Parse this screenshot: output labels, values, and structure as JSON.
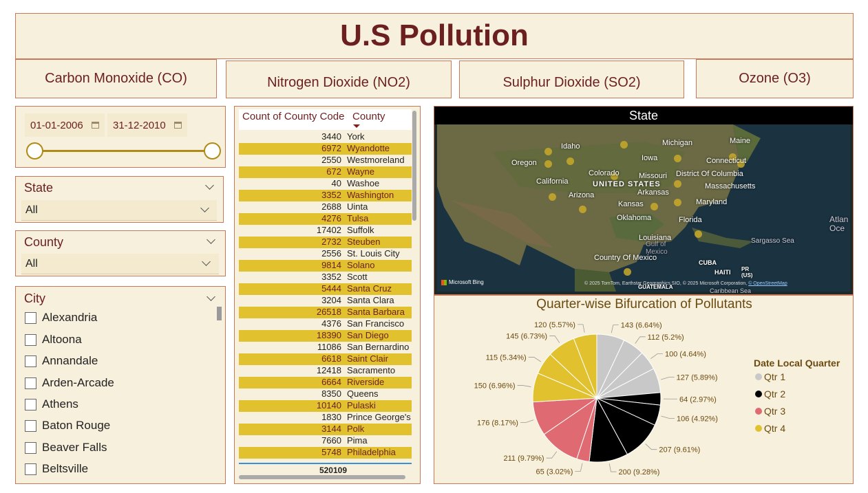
{
  "title": "U.S Pollution",
  "tabs": [
    "Carbon Monoxide (CO)",
    "Nitrogen Dioxide (NO2)",
    "Sulphur Dioxide (SO2)",
    "Ozone (O3)"
  ],
  "date_range": {
    "start": "01-01-2006",
    "end": "31-12-2010"
  },
  "state_slicer": {
    "title": "State",
    "value": "All"
  },
  "county_slicer": {
    "title": "County",
    "value": "All"
  },
  "city_slicer": {
    "title": "City",
    "items": [
      "Alexandria",
      "Altoona",
      "Annandale",
      "Arden-Arcade",
      "Athens",
      "Baton Rouge",
      "Beaver Falls",
      "Beltsville"
    ]
  },
  "table": {
    "col_count": "Count of County Code",
    "col_county": "County",
    "rows": [
      {
        "count": "3440",
        "county": "York"
      },
      {
        "count": "6972",
        "county": "Wyandotte"
      },
      {
        "count": "2550",
        "county": "Westmoreland"
      },
      {
        "count": "672",
        "county": "Wayne"
      },
      {
        "count": "40",
        "county": "Washoe"
      },
      {
        "count": "3352",
        "county": "Washington"
      },
      {
        "count": "2688",
        "county": "Uinta"
      },
      {
        "count": "4276",
        "county": "Tulsa"
      },
      {
        "count": "17402",
        "county": "Suffolk"
      },
      {
        "count": "2732",
        "county": "Steuben"
      },
      {
        "count": "2556",
        "county": "St. Louis City"
      },
      {
        "count": "9814",
        "county": "Solano"
      },
      {
        "count": "3352",
        "county": "Scott"
      },
      {
        "count": "5444",
        "county": "Santa Cruz"
      },
      {
        "count": "3204",
        "county": "Santa Clara"
      },
      {
        "count": "26518",
        "county": "Santa Barbara"
      },
      {
        "count": "4376",
        "county": "San Francisco"
      },
      {
        "count": "18390",
        "county": "San Diego"
      },
      {
        "count": "11086",
        "county": "San Bernardino"
      },
      {
        "count": "6618",
        "county": "Saint Clair"
      },
      {
        "count": "12418",
        "county": "Sacramento"
      },
      {
        "count": "6664",
        "county": "Riverside"
      },
      {
        "count": "8350",
        "county": "Queens"
      },
      {
        "count": "10140",
        "county": "Pulaski"
      },
      {
        "count": "1830",
        "county": "Prince George's"
      },
      {
        "count": "3144",
        "county": "Polk"
      },
      {
        "count": "7660",
        "county": "Pima"
      },
      {
        "count": "5748",
        "county": "Philadelphia"
      }
    ],
    "total": "520109"
  },
  "map": {
    "title": "State",
    "labels": [
      "Idaho",
      "Michigan",
      "Maine",
      "Oregon",
      "Iowa",
      "Connecticut",
      "Colorado",
      "Missouri",
      "District Of Columbia",
      "California",
      "UNITED STATES",
      "Massachusetts",
      "Arkansas",
      "Arizona",
      "Kansas",
      "Maryland",
      "Oklahoma",
      "Florida",
      "Louisiana",
      "Gulf of Mexico",
      "Sargasso Sea",
      "Country Of Mexico",
      "CUBA",
      "HAITI",
      "PR (US)",
      "Atlan Oce",
      "GUATEMALA",
      "Caribbean Sea"
    ],
    "brand": "Microsoft Bing",
    "attribution": "© 2025 TomTom, Earthstar Geographics SIO, © 2025 Microsoft Corporation, ",
    "attribution_link": "© OpenStreetMap"
  },
  "chart_data": {
    "type": "pie",
    "title": "Quarter-wise Bifurcation of Pollutants",
    "legend_title": "Date Local Quarter",
    "legend_position": "right",
    "categories": [
      "Qtr 1",
      "Qtr 2",
      "Qtr 3",
      "Qtr 4"
    ],
    "colors": [
      "#c8c8c8",
      "#000000",
      "#e06a72",
      "#e2c12e"
    ],
    "slices": [
      {
        "quarter": "Qtr 1",
        "value": 143,
        "label": "143 (6.64%)"
      },
      {
        "quarter": "Qtr 1",
        "value": 112,
        "label": "112 (5.2%)"
      },
      {
        "quarter": "Qtr 1",
        "value": 100,
        "label": "100 (4.64%)"
      },
      {
        "quarter": "Qtr 1",
        "value": 127,
        "label": "127 (5.89%)"
      },
      {
        "quarter": "Qtr 2",
        "value": 64,
        "label": "64 (2.97%)"
      },
      {
        "quarter": "Qtr 2",
        "value": 106,
        "label": "106 (4.92%)"
      },
      {
        "quarter": "Qtr 2",
        "value": 207,
        "label": "207 (9.61%)"
      },
      {
        "quarter": "Qtr 2",
        "value": 200,
        "label": "200 (9.28%)"
      },
      {
        "quarter": "Qtr 3",
        "value": 65,
        "label": "65 (3.02%)"
      },
      {
        "quarter": "Qtr 3",
        "value": 211,
        "label": "211 (9.79%)"
      },
      {
        "quarter": "Qtr 3",
        "value": 176,
        "label": "176 (8.17%)"
      },
      {
        "quarter": "Qtr 4",
        "value": 150,
        "label": "150 (6.96%)"
      },
      {
        "quarter": "Qtr 4",
        "value": 115,
        "label": "115 (5.34%)"
      },
      {
        "quarter": "Qtr 4",
        "value": 145,
        "label": "145 (6.73%)"
      },
      {
        "quarter": "Qtr 4",
        "value": 120,
        "label": "120 (5.57%)"
      }
    ]
  }
}
